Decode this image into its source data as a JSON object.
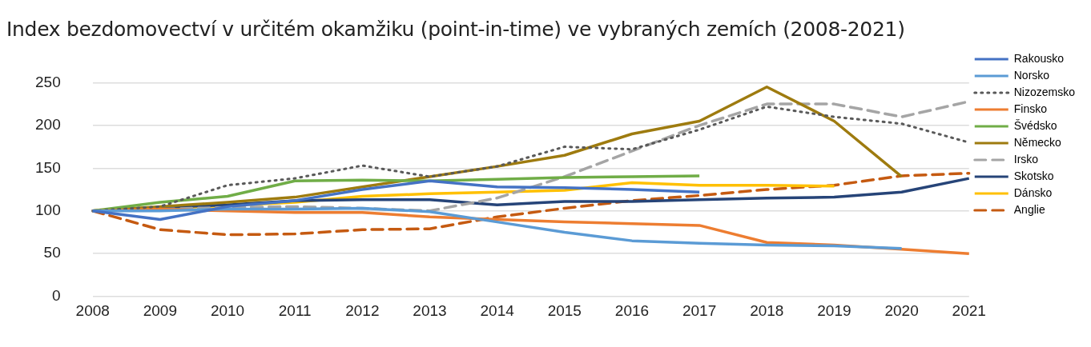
{
  "chart_data": {
    "type": "line",
    "title": "Index bezdomovectví v určitém okamžiku (point-in-time) ve vybraných zemích (2008-2021)",
    "categories": [
      "2008",
      "2009",
      "2010",
      "2011",
      "2012",
      "2013",
      "2014",
      "2015",
      "2016",
      "2017",
      "2018",
      "2019",
      "2020",
      "2021"
    ],
    "series": [
      {
        "name": "Rakousko",
        "color": "#4472c4",
        "line_style": "solid",
        "values": [
          100,
          90,
          105,
          112,
          125,
          135,
          128,
          127,
          125,
          122,
          null,
          null,
          null,
          null
        ]
      },
      {
        "name": "Norsko",
        "color": "#5b9bd5",
        "line_style": "solid",
        "values": [
          100,
          100,
          102,
          102,
          103,
          99,
          87,
          75,
          65,
          62,
          60,
          59,
          56,
          null
        ]
      },
      {
        "name": "Nizozemsko",
        "color": "#595959",
        "line_style": "dotted",
        "values": [
          100,
          105,
          130,
          138,
          153,
          140,
          152,
          175,
          172,
          195,
          222,
          210,
          202,
          180
        ]
      },
      {
        "name": "Finsko",
        "color": "#ed7d31",
        "line_style": "solid",
        "values": [
          100,
          102,
          100,
          98,
          98,
          93,
          90,
          87,
          85,
          83,
          63,
          60,
          55,
          50
        ]
      },
      {
        "name": "Švédsko",
        "color": "#70ad47",
        "line_style": "solid",
        "values": [
          100,
          110,
          117,
          135,
          136,
          135,
          137,
          139,
          140,
          141,
          null,
          null,
          null,
          null
        ]
      },
      {
        "name": "Německo",
        "color": "#9e7b0f",
        "line_style": "solid",
        "values": [
          100,
          105,
          110,
          116,
          128,
          140,
          152,
          165,
          190,
          205,
          245,
          205,
          140,
          null
        ]
      },
      {
        "name": "Irsko",
        "color": "#a5a5a5",
        "line_style": "dashed",
        "values": [
          100,
          102,
          104,
          105,
          103,
          100,
          115,
          140,
          170,
          200,
          225,
          225,
          210,
          228
        ]
      },
      {
        "name": "Skotsko",
        "color": "#264478",
        "line_style": "solid",
        "values": [
          100,
          104,
          107,
          112,
          113,
          113,
          107,
          111,
          111,
          113,
          115,
          116,
          122,
          138
        ]
      },
      {
        "name": "Dánsko",
        "color": "#ffc000",
        "line_style": "solid",
        "values": [
          100,
          103,
          106,
          110,
          117,
          120,
          122,
          124,
          133,
          130,
          130,
          129,
          null,
          null
        ]
      },
      {
        "name": "Anglie",
        "color": "#c55a11",
        "line_style": "dashed",
        "values": [
          100,
          78,
          72,
          73,
          78,
          79,
          93,
          103,
          112,
          118,
          125,
          130,
          141,
          144
        ]
      }
    ],
    "ylim": [
      0,
      250
    ],
    "yticks": [
      0,
      50,
      100,
      150,
      200,
      250
    ],
    "grid": "y",
    "legend": "right",
    "marker": "none"
  }
}
